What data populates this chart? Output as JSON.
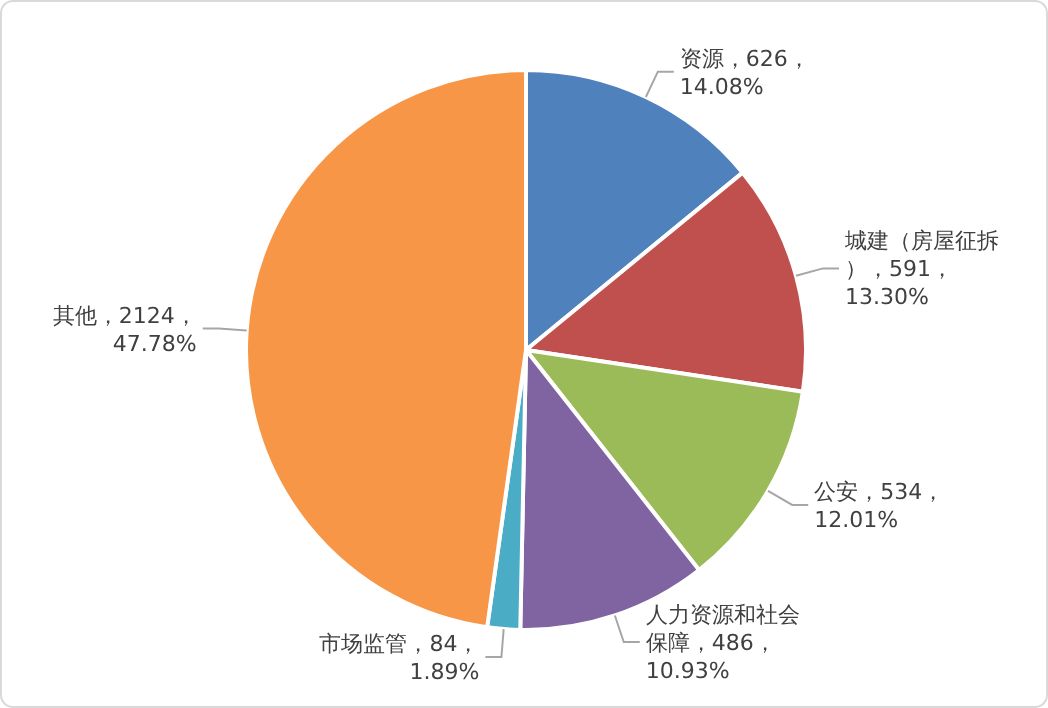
{
  "chart_data": {
    "type": "pie",
    "categories": [
      "资源",
      "城建（房屋征拆）",
      "公安",
      "人力资源和社会保障",
      "市场监管",
      "其他"
    ],
    "values": [
      626,
      591,
      534,
      486,
      84,
      2124
    ],
    "value_labels": [
      "626，14.08%",
      "591，13.30%",
      "534，12.01%",
      "486，10.93%",
      "84，1.89%",
      "2124，47.78%"
    ],
    "colors": [
      "#4f81bd",
      "#c0504d",
      "#9bbb59",
      "#8064a2",
      "#4bacc6",
      "#f79646"
    ]
  }
}
